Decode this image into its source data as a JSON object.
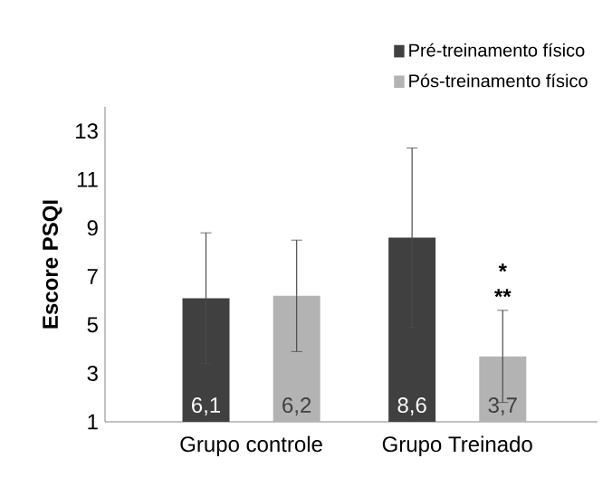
{
  "chart_data": {
    "type": "bar",
    "ylabel": "Escore PSQI",
    "categories": [
      "Grupo controle",
      "Grupo Treinado"
    ],
    "series": [
      {
        "name": "Pré-treinamento físico",
        "color": "#404040",
        "values": [
          6.1,
          8.6
        ],
        "errors": [
          2.7,
          3.7
        ],
        "value_labels": [
          "6,1",
          "8,6"
        ]
      },
      {
        "name": "Pós-treinamento físico",
        "color": "#b3b3b3",
        "values": [
          6.2,
          3.7
        ],
        "errors": [
          2.3,
          1.9
        ],
        "value_labels": [
          "6,2",
          "3,7"
        ]
      }
    ],
    "annotations": [
      "*",
      "**"
    ],
    "ylim": [
      1,
      14
    ],
    "yticks": [
      1,
      3,
      5,
      7,
      9,
      11,
      13
    ],
    "legend": "top right",
    "grid": false
  }
}
